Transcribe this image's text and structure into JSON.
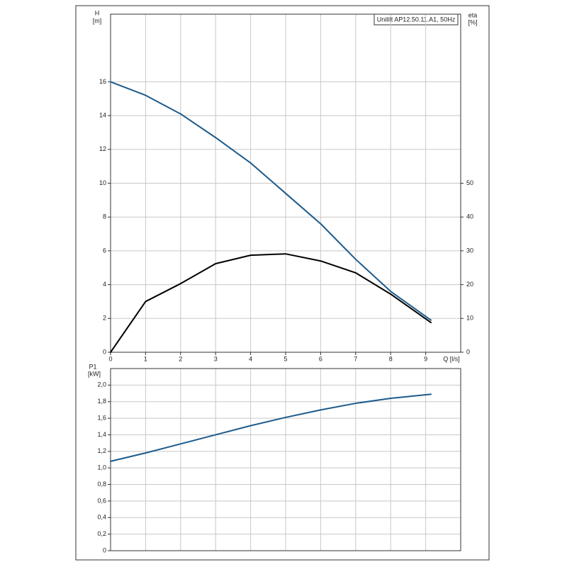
{
  "chart_data": [
    {
      "type": "line",
      "title": "Unilift AP12.50.11.A1, 50Hz",
      "y_label": "H",
      "y_unit": "[m]",
      "y2_label": "eta",
      "y2_unit": "[%]",
      "x_label": "Q [l/s]",
      "x": [
        0,
        1,
        2,
        3,
        4,
        5,
        6,
        7,
        8,
        9.15
      ],
      "xlim": [
        0,
        10
      ],
      "xticks": [
        0,
        1,
        2,
        3,
        4,
        5,
        6,
        7,
        8,
        9
      ],
      "ylim": [
        0,
        20
      ],
      "yticks": [
        0,
        2,
        4,
        6,
        8,
        10,
        12,
        14,
        16
      ],
      "y2lim": [
        0,
        100
      ],
      "y2ticks": [
        0,
        10,
        20,
        30,
        40,
        50
      ],
      "grid": true,
      "series": [
        {
          "color": "#1d5a8a",
          "values": [
            16,
            15.2,
            14.1,
            12.7,
            11.2,
            9.4,
            7.6,
            5.5,
            3.6,
            1.9
          ]
        },
        {
          "color": "#000000",
          "axis": "y2",
          "values": [
            0,
            15,
            20.3,
            26.2,
            28.7,
            29.1,
            27,
            23.5,
            17.2,
            8.8
          ]
        }
      ]
    },
    {
      "type": "line",
      "y_label": "P1",
      "y_unit": "[kW]",
      "x": [
        0,
        1,
        2,
        3,
        4,
        5,
        6,
        7,
        8,
        9.15
      ],
      "ylim": [
        0,
        2.2
      ],
      "yticks": [
        0,
        {
          "value": 0.2,
          "label": "0,2"
        },
        {
          "value": 0.4,
          "label": "0,4"
        },
        {
          "value": 0.6,
          "label": "0,6"
        },
        {
          "value": 0.8,
          "label": "0,8"
        },
        {
          "value": 1.0,
          "label": "1,0"
        },
        {
          "value": 1.2,
          "label": "1,2"
        },
        {
          "value": 1.4,
          "label": "1,4"
        },
        {
          "value": 1.6,
          "label": "1,6"
        },
        {
          "value": 1.8,
          "label": "1,8"
        },
        {
          "value": 2.0,
          "label": "2,0"
        }
      ],
      "grid": true,
      "series": [
        {
          "color": "#1d5a8a",
          "values": [
            1.08,
            1.18,
            1.29,
            1.4,
            1.51,
            1.61,
            1.7,
            1.78,
            1.84,
            1.89
          ]
        }
      ]
    }
  ]
}
